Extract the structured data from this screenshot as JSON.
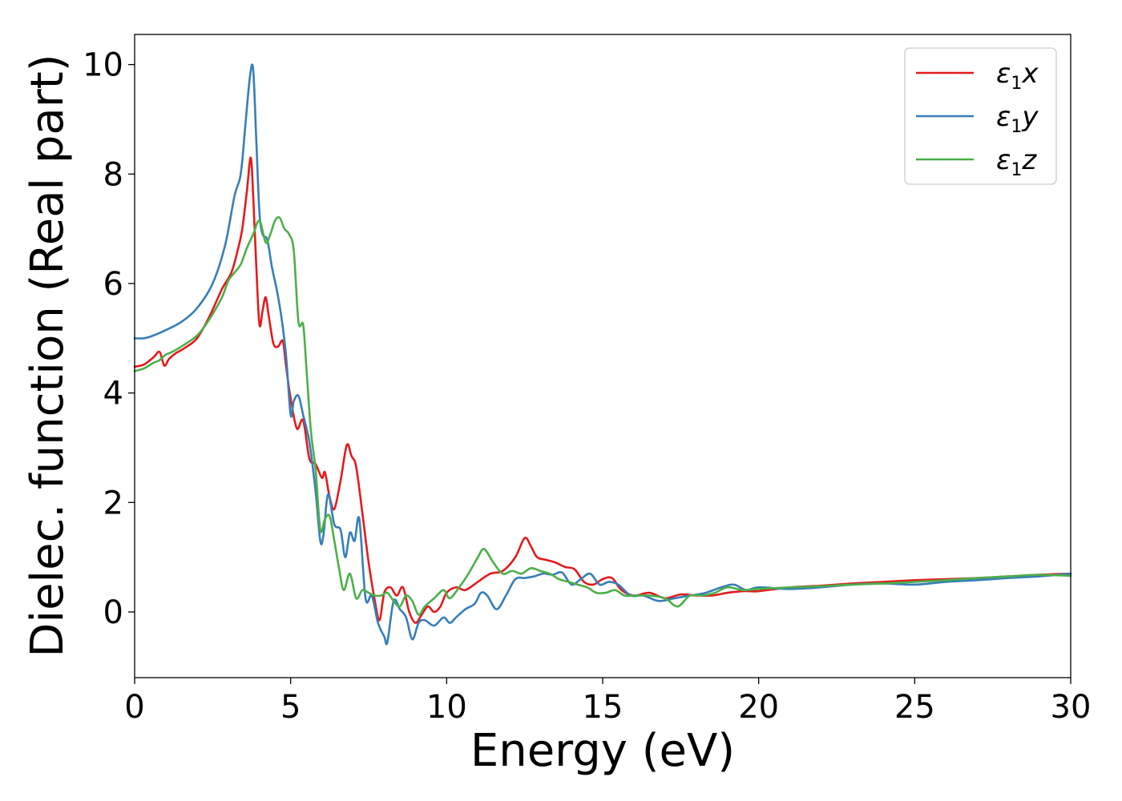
{
  "chart_data": {
    "type": "line",
    "xlabel": "Energy (eV)",
    "ylabel": "Dielec. function (Real part)",
    "xlim": [
      0,
      30
    ],
    "ylim": [
      -1.2,
      10.55
    ],
    "xticks": [
      0,
      5,
      10,
      15,
      20,
      25,
      30
    ],
    "yticks": [
      0,
      2,
      4,
      6,
      8,
      10
    ],
    "grid": false,
    "legend_position": "top-right",
    "series": [
      {
        "name": "ε1x",
        "legend": {
          "symbol": "ε",
          "sub": "1",
          "var": "x"
        },
        "color": "#e41a1c",
        "x": [
          0,
          0.3,
          0.6,
          0.8,
          0.95,
          1.1,
          1.3,
          1.6,
          2.0,
          2.4,
          2.8,
          3.1,
          3.3,
          3.45,
          3.6,
          3.72,
          3.8,
          3.9,
          4.0,
          4.1,
          4.2,
          4.3,
          4.45,
          4.6,
          4.75,
          4.85,
          5.0,
          5.2,
          5.4,
          5.6,
          5.8,
          6.0,
          6.1,
          6.25,
          6.4,
          6.6,
          6.8,
          6.95,
          7.1,
          7.3,
          7.5,
          7.7,
          7.85,
          8.0,
          8.2,
          8.4,
          8.6,
          8.8,
          9.0,
          9.2,
          9.4,
          9.6,
          9.8,
          10.0,
          10.3,
          10.6,
          11.0,
          11.4,
          11.8,
          12.2,
          12.5,
          12.7,
          12.9,
          13.2,
          13.5,
          13.8,
          14.1,
          14.4,
          14.7,
          15.0,
          15.3,
          15.6,
          16.0,
          16.5,
          17.0,
          17.5,
          18.0,
          18.5,
          19.0,
          19.5,
          20.0,
          21.0,
          22.0,
          23.0,
          24.0,
          25.0,
          26.0,
          27.0,
          28.0,
          29.0,
          30.0
        ],
        "y": [
          4.48,
          4.52,
          4.65,
          4.75,
          4.5,
          4.62,
          4.72,
          4.82,
          5.0,
          5.4,
          5.9,
          6.2,
          6.6,
          7.0,
          7.7,
          8.3,
          7.6,
          6.3,
          5.25,
          5.5,
          5.75,
          5.4,
          4.9,
          4.85,
          4.95,
          4.5,
          3.9,
          3.35,
          3.5,
          2.8,
          2.7,
          2.45,
          2.55,
          2.1,
          1.88,
          2.4,
          3.05,
          2.85,
          2.65,
          1.8,
          0.9,
          0.2,
          -0.15,
          0.35,
          0.45,
          0.3,
          0.45,
          0.0,
          -0.2,
          -0.05,
          0.1,
          0.0,
          0.1,
          0.35,
          0.45,
          0.4,
          0.55,
          0.7,
          0.75,
          1.0,
          1.35,
          1.2,
          1.0,
          0.95,
          0.9,
          0.82,
          0.78,
          0.55,
          0.5,
          0.6,
          0.62,
          0.4,
          0.3,
          0.35,
          0.25,
          0.32,
          0.3,
          0.3,
          0.35,
          0.38,
          0.38,
          0.45,
          0.48,
          0.52,
          0.55,
          0.58,
          0.6,
          0.62,
          0.65,
          0.68,
          0.7
        ]
      },
      {
        "name": "ε1y",
        "legend": {
          "symbol": "ε",
          "sub": "1",
          "var": "y"
        },
        "color": "#377eb8",
        "x": [
          0,
          0.3,
          0.6,
          1.0,
          1.5,
          2.0,
          2.5,
          2.9,
          3.2,
          3.4,
          3.55,
          3.7,
          3.8,
          3.9,
          4.0,
          4.1,
          4.25,
          4.4,
          4.55,
          4.7,
          4.85,
          5.0,
          5.1,
          5.25,
          5.4,
          5.6,
          5.8,
          5.95,
          6.05,
          6.2,
          6.4,
          6.6,
          6.75,
          6.9,
          7.05,
          7.2,
          7.4,
          7.6,
          7.8,
          8.0,
          8.1,
          8.3,
          8.5,
          8.7,
          8.9,
          9.1,
          9.3,
          9.6,
          9.9,
          10.1,
          10.3,
          10.6,
          10.9,
          11.1,
          11.3,
          11.6,
          11.9,
          12.2,
          12.5,
          12.8,
          13.1,
          13.4,
          13.7,
          14.0,
          14.3,
          14.6,
          14.9,
          15.2,
          15.5,
          15.9,
          16.3,
          16.8,
          17.3,
          17.8,
          18.3,
          18.8,
          19.2,
          19.6,
          20.0,
          21.0,
          22.0,
          23.0,
          24.0,
          25.0,
          26.0,
          27.0,
          28.0,
          29.0,
          30.0
        ],
        "y": [
          5.0,
          5.0,
          5.05,
          5.15,
          5.3,
          5.55,
          6.0,
          6.7,
          7.6,
          8.0,
          8.9,
          9.8,
          9.9,
          8.6,
          7.3,
          6.9,
          6.8,
          6.3,
          5.9,
          5.4,
          4.7,
          3.6,
          3.85,
          3.95,
          3.6,
          3.1,
          2.2,
          1.3,
          1.4,
          2.15,
          1.6,
          1.5,
          1.0,
          1.45,
          1.3,
          1.7,
          0.25,
          0.3,
          -0.2,
          -0.45,
          -0.55,
          0.2,
          0.05,
          -0.1,
          -0.5,
          -0.2,
          -0.15,
          -0.25,
          -0.1,
          -0.2,
          -0.1,
          0.05,
          0.15,
          0.35,
          0.3,
          0.05,
          0.3,
          0.6,
          0.62,
          0.65,
          0.7,
          0.68,
          0.72,
          0.5,
          0.6,
          0.7,
          0.5,
          0.55,
          0.5,
          0.3,
          0.3,
          0.2,
          0.25,
          0.3,
          0.35,
          0.45,
          0.5,
          0.4,
          0.45,
          0.42,
          0.45,
          0.5,
          0.52,
          0.5,
          0.55,
          0.58,
          0.62,
          0.65,
          0.7
        ]
      },
      {
        "name": "ε1z",
        "legend": {
          "symbol": "ε",
          "sub": "1",
          "var": "z"
        },
        "color": "#4daf4a",
        "x": [
          0,
          0.3,
          0.6,
          0.8,
          1.0,
          1.2,
          1.5,
          2.0,
          2.4,
          2.8,
          3.0,
          3.2,
          3.4,
          3.6,
          3.8,
          4.0,
          4.2,
          4.35,
          4.5,
          4.65,
          4.8,
          4.95,
          5.1,
          5.25,
          5.4,
          5.5,
          5.65,
          5.8,
          5.95,
          6.1,
          6.25,
          6.4,
          6.55,
          6.7,
          6.9,
          7.1,
          7.3,
          7.5,
          7.7,
          7.9,
          8.1,
          8.3,
          8.5,
          8.7,
          8.9,
          9.1,
          9.3,
          9.6,
          9.9,
          10.1,
          10.4,
          10.7,
          11.0,
          11.2,
          11.5,
          11.8,
          12.1,
          12.4,
          12.7,
          13.0,
          13.3,
          13.6,
          13.9,
          14.2,
          14.5,
          14.8,
          15.1,
          15.4,
          15.7,
          16.0,
          16.5,
          17.0,
          17.4,
          17.8,
          18.2,
          18.6,
          19.0,
          19.5,
          20.0,
          21.0,
          22.0,
          23.0,
          24.0,
          25.0,
          26.0,
          27.0,
          28.0,
          29.0,
          30.0
        ],
        "y": [
          4.4,
          4.45,
          4.55,
          4.6,
          4.7,
          4.75,
          4.85,
          5.05,
          5.35,
          5.75,
          6.05,
          6.2,
          6.35,
          6.65,
          6.9,
          7.15,
          6.75,
          6.9,
          7.15,
          7.2,
          7.0,
          6.9,
          6.6,
          5.3,
          5.25,
          4.5,
          3.3,
          2.6,
          1.5,
          1.7,
          1.75,
          1.3,
          0.8,
          0.4,
          0.7,
          0.25,
          0.4,
          0.35,
          0.3,
          0.3,
          0.35,
          0.2,
          0.1,
          0.3,
          0.2,
          -0.05,
          0.1,
          0.25,
          0.4,
          0.25,
          0.45,
          0.7,
          1.0,
          1.15,
          0.9,
          0.7,
          0.75,
          0.7,
          0.8,
          0.75,
          0.7,
          0.6,
          0.55,
          0.5,
          0.45,
          0.35,
          0.35,
          0.4,
          0.3,
          0.3,
          0.3,
          0.25,
          0.1,
          0.3,
          0.3,
          0.35,
          0.45,
          0.4,
          0.42,
          0.45,
          0.47,
          0.5,
          0.52,
          0.55,
          0.58,
          0.62,
          0.65,
          0.68,
          0.66
        ]
      }
    ]
  }
}
